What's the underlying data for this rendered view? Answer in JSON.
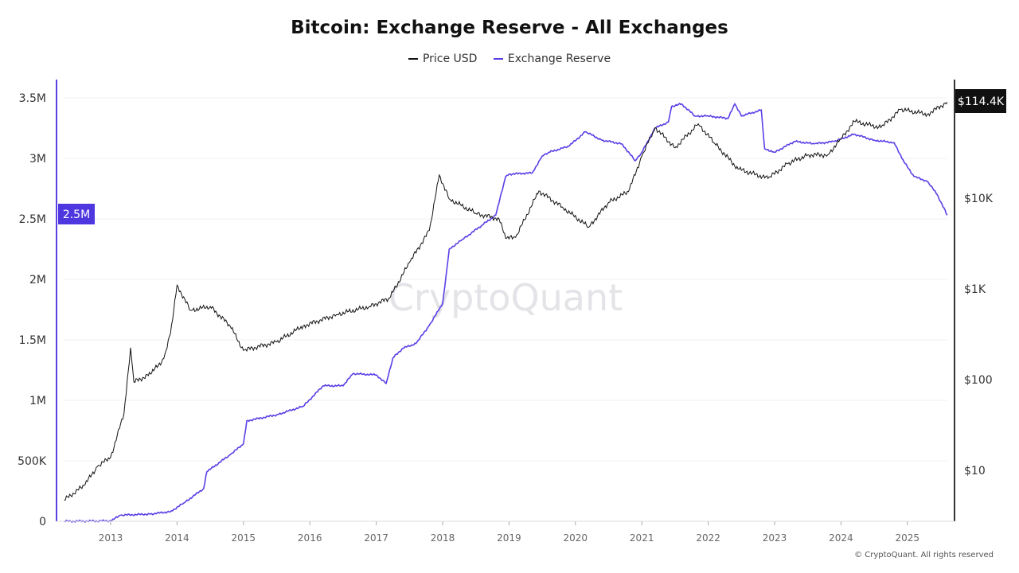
{
  "chart_data": {
    "type": "line",
    "title": "Bitcoin: Exchange Reserve - All Exchanges",
    "legend": [
      "Price USD",
      "Exchange Reserve"
    ],
    "legend_position": "top-center",
    "x_ticks": [
      "2013",
      "2014",
      "2015",
      "2016",
      "2017",
      "2018",
      "2019",
      "2020",
      "2021",
      "2022",
      "2023",
      "2024",
      "2025"
    ],
    "xlim": [
      2012.3,
      2025.6
    ],
    "left_axis": {
      "ticks": [
        "0",
        "500K",
        "1M",
        "1.5M",
        "2M",
        "2.5M",
        "3M",
        "3.5M"
      ],
      "ylim": [
        0,
        3500000
      ],
      "current_label": "2.5M"
    },
    "right_axis": {
      "scale": "log",
      "ticks": [
        "$10",
        "$100",
        "$1K",
        "$10K"
      ],
      "current_label": "$114.4K"
    },
    "colors": {
      "price": "#111111",
      "reserve": "#5b3fe6",
      "reserve_label_bg": "#4f37e0",
      "price_label_bg": "#111111"
    },
    "series": [
      {
        "name": "Exchange Reserve",
        "axis": "left",
        "unit": "BTC (millions)",
        "x": [
          2012.3,
          2013.0,
          2013.15,
          2013.6,
          2013.9,
          2014.1,
          2014.4,
          2014.45,
          2014.8,
          2015.0,
          2015.05,
          2015.5,
          2015.9,
          2016.2,
          2016.5,
          2016.65,
          2017.0,
          2017.15,
          2017.25,
          2017.4,
          2017.6,
          2017.8,
          2018.0,
          2018.1,
          2018.3,
          2018.6,
          2018.8,
          2018.95,
          2019.0,
          2019.35,
          2019.5,
          2019.6,
          2019.9,
          2020.15,
          2020.4,
          2020.7,
          2020.9,
          2021.0,
          2021.2,
          2021.4,
          2021.45,
          2021.6,
          2021.8,
          2022.0,
          2022.3,
          2022.4,
          2022.5,
          2022.8,
          2022.85,
          2023.0,
          2023.3,
          2023.6,
          2023.9,
          2024.2,
          2024.5,
          2024.8,
          2024.95,
          2025.1,
          2025.3,
          2025.45,
          2025.6
        ],
        "y": [
          0,
          0.003,
          0.05,
          0.06,
          0.08,
          0.15,
          0.27,
          0.41,
          0.55,
          0.64,
          0.83,
          0.88,
          0.95,
          1.12,
          1.12,
          1.22,
          1.21,
          1.14,
          1.35,
          1.43,
          1.47,
          1.62,
          1.8,
          2.25,
          2.33,
          2.45,
          2.53,
          2.85,
          2.87,
          2.88,
          3.02,
          3.05,
          3.1,
          3.22,
          3.15,
          3.12,
          2.98,
          3.05,
          3.25,
          3.3,
          3.43,
          3.45,
          3.35,
          3.35,
          3.33,
          3.45,
          3.35,
          3.4,
          3.08,
          3.05,
          3.14,
          3.12,
          3.14,
          3.2,
          3.15,
          3.13,
          2.97,
          2.85,
          2.81,
          2.7,
          2.53
        ]
      },
      {
        "name": "Price USD",
        "axis": "right",
        "unit": "USD",
        "x": [
          2012.3,
          2012.6,
          2012.8,
          2013.0,
          2013.2,
          2013.3,
          2013.35,
          2013.6,
          2013.8,
          2013.9,
          2014.0,
          2014.2,
          2014.5,
          2014.8,
          2015.0,
          2015.5,
          2015.9,
          2016.4,
          2016.9,
          2017.2,
          2017.5,
          2017.8,
          2017.95,
          2018.1,
          2018.5,
          2018.85,
          2018.95,
          2019.1,
          2019.45,
          2019.8,
          2020.2,
          2020.5,
          2020.8,
          2021.0,
          2021.2,
          2021.5,
          2021.85,
          2022.1,
          2022.45,
          2022.9,
          2023.2,
          2023.5,
          2023.8,
          2024.0,
          2024.2,
          2024.6,
          2024.9,
          2025.3,
          2025.6
        ],
        "y": [
          4.7,
          6.8,
          11,
          14,
          42,
          225,
          94,
          115,
          170,
          320,
          1100,
          580,
          640,
          390,
          210,
          260,
          390,
          520,
          640,
          790,
          1950,
          4400,
          18000,
          9800,
          6800,
          5900,
          3600,
          3700,
          12000,
          8000,
          4800,
          9000,
          11800,
          29000,
          60000,
          36000,
          66000,
          40000,
          21000,
          16500,
          24000,
          30000,
          30000,
          45000,
          70000,
          60000,
          95000,
          84000,
          114400
        ]
      }
    ]
  },
  "watermark": "CryptoQuant",
  "copyright": "© CryptoQuant. All rights reserved"
}
